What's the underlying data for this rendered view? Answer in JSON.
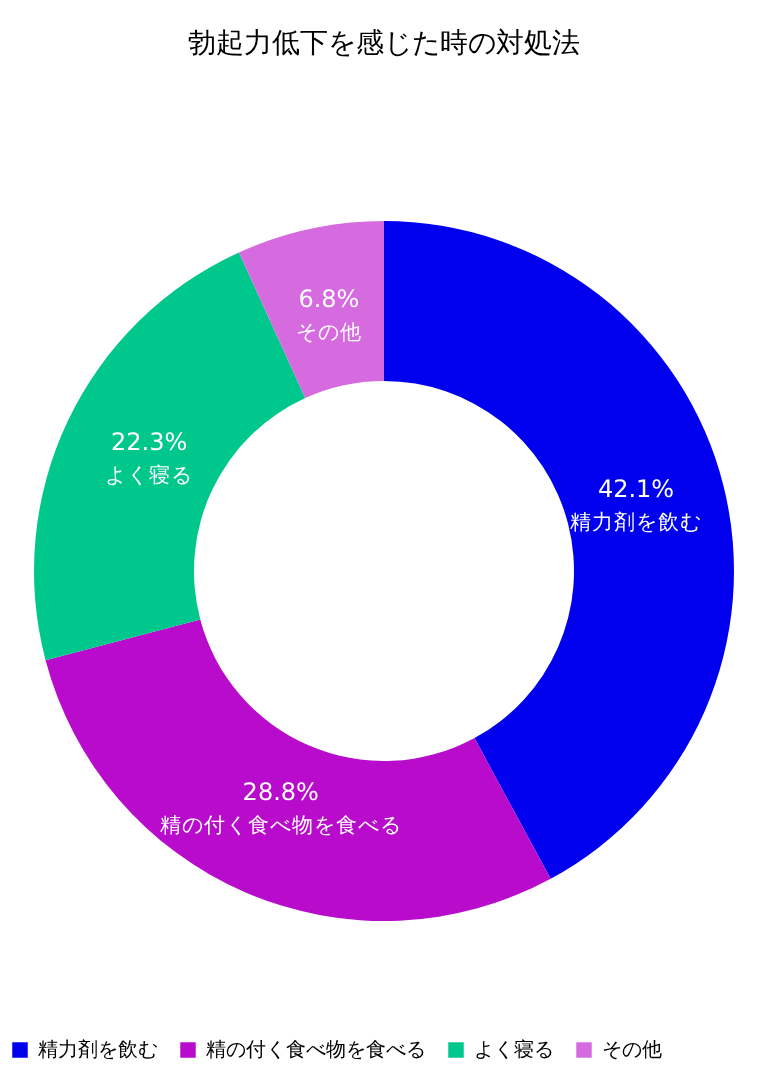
{
  "chart_data": {
    "type": "donut",
    "title": "勃起力低下を感じた時の対処法",
    "categories": [
      "精力剤を飲む",
      "精の付く食べ物を食べる",
      "よく寝る",
      "その他"
    ],
    "values": [
      42.1,
      28.8,
      22.3,
      6.8
    ],
    "value_labels": [
      "42.1%",
      "28.8%",
      "22.3%",
      "6.8%"
    ],
    "colors": [
      "#0000ee",
      "#b80bcc",
      "#00c88c",
      "#d66be0"
    ],
    "legend": "bottom"
  }
}
